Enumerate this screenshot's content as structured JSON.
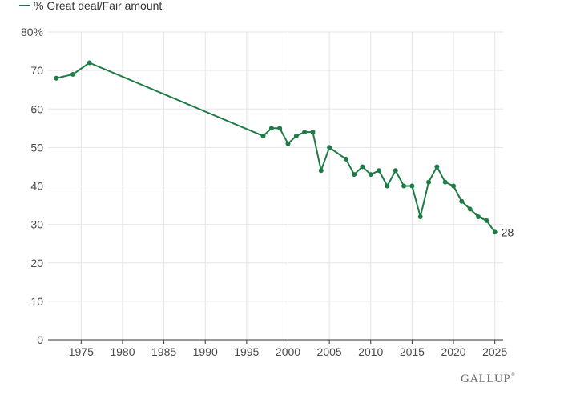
{
  "chart_data": {
    "type": "line",
    "title": "",
    "xlabel": "",
    "ylabel": "",
    "series": [
      {
        "name": "% Great deal/Fair amount",
        "x": [
          1972,
          1974,
          1976,
          1997,
          1998,
          1999,
          2000,
          2001,
          2002,
          2003,
          2004,
          2005,
          2007,
          2008,
          2009,
          2010,
          2011,
          2012,
          2013,
          2014,
          2015,
          2016,
          2017,
          2018,
          2019,
          2020,
          2021,
          2022,
          2023,
          2024,
          2025
        ],
        "values": [
          68,
          69,
          72,
          53,
          55,
          55,
          51,
          53,
          54,
          54,
          44,
          50,
          47,
          43,
          45,
          43,
          44,
          40,
          44,
          40,
          40,
          32,
          41,
          45,
          41,
          40,
          36,
          34,
          32,
          31,
          28
        ]
      }
    ],
    "xlim": [
      1971,
      2026
    ],
    "ylim": [
      0,
      80
    ],
    "x_ticks": [
      1975,
      1980,
      1985,
      1990,
      1995,
      2000,
      2005,
      2010,
      2015,
      2020,
      2025
    ],
    "x_tick_labels": [
      "1975",
      "1980",
      "1985",
      "1990",
      "1995",
      "2000",
      "2005",
      "2010",
      "2015",
      "2020",
      "2025"
    ],
    "y_ticks": [
      0,
      10,
      20,
      30,
      40,
      50,
      60,
      70,
      80
    ],
    "y_tick_labels": [
      "0",
      "10",
      "20",
      "30",
      "40",
      "50",
      "60",
      "70",
      "80%"
    ],
    "grid": true,
    "legend": {
      "position": "top-left",
      "entries": [
        "% Great deal/Fair amount"
      ]
    },
    "annotations": [
      {
        "x": 2025,
        "y": 28,
        "text": "28"
      }
    ],
    "line_color": "#1e7b45",
    "grid_color": "#e5e5e5",
    "axis_color": "#333333"
  },
  "branding": {
    "logo_text": "GALLUP",
    "trademark": "®"
  }
}
